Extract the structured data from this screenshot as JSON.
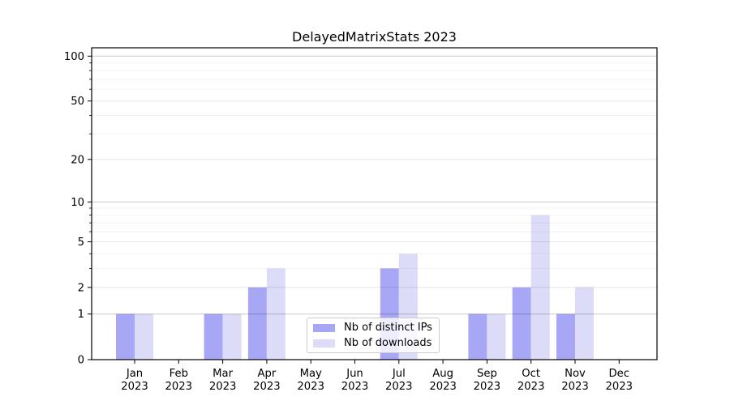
{
  "chart_data": {
    "type": "bar",
    "title": "DelayedMatrixStats 2023",
    "x_tick_months": [
      "Jan",
      "Feb",
      "Mar",
      "Apr",
      "May",
      "Jun",
      "Jul",
      "Aug",
      "Sep",
      "Oct",
      "Nov",
      "Dec"
    ],
    "x_tick_year": "2023",
    "series": [
      {
        "name": "Nb of distinct IPs",
        "color": "#a7a7f5",
        "values": [
          1,
          0,
          1,
          2,
          0,
          0,
          3,
          0,
          1,
          2,
          1,
          0
        ]
      },
      {
        "name": "Nb of downloads",
        "color": "#dcdcf8",
        "values": [
          1,
          0,
          1,
          3,
          0,
          0,
          4,
          0,
          1,
          8,
          2,
          0
        ]
      }
    ],
    "y_scale": "log1p",
    "y_major_ticks": [
      0,
      1,
      2,
      5,
      10,
      20,
      50,
      100
    ],
    "y_minor_ticks": [
      3,
      4,
      6,
      7,
      8,
      9,
      30,
      40,
      60,
      70,
      80,
      90
    ],
    "ylim": [
      0,
      113
    ],
    "grid": true,
    "legend_position": "inside-bottom-center",
    "colors": {
      "spine": "#000000",
      "grid_decade": "rgba(0,0,0,0.22)",
      "grid_labeled": "rgba(0,0,0,0.10)",
      "grid_minor": "rgba(0,0,0,0.05)",
      "legend_border": "#cccccc"
    }
  }
}
